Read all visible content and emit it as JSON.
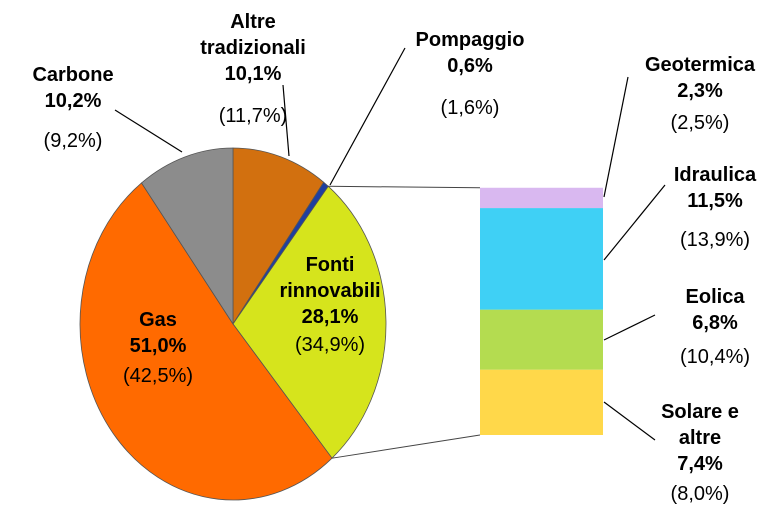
{
  "chart_data": [
    {
      "type": "pie",
      "categories": [
        "Altre tradizionali",
        "Pompaggio",
        "Fonti rinnovabili",
        "Gas",
        "Carbone"
      ],
      "values": [
        10.1,
        0.6,
        28.1,
        51.0,
        10.2
      ],
      "value_labels": [
        "10,1%",
        "0,6%",
        "28,1%",
        "51,0%",
        "10,2%"
      ],
      "colors": [
        "#d2700f",
        "#1f3fa0",
        "#d6e41c",
        "#ff6a00",
        "#8c8c8c"
      ],
      "previous": {
        "values": [
          11.7,
          1.6,
          34.9,
          42.5,
          9.2
        ],
        "value_labels": [
          "(11,7%)",
          "(1,6%)",
          "(34,9%)",
          "(42,5%)",
          "(9,2%)"
        ]
      }
    },
    {
      "type": "bar",
      "stacked": true,
      "categories": [
        "Solare e altre",
        "Eolica",
        "Idraulica",
        "Geotermica"
      ],
      "values": [
        7.4,
        6.8,
        11.5,
        2.3
      ],
      "value_labels": [
        "7,4%",
        "6,8%",
        "11,5%",
        "2,3%"
      ],
      "colors": [
        "#ffd84a",
        "#b4dc50",
        "#3fd0f5",
        "#d9b8f0"
      ],
      "previous": {
        "values": [
          8.0,
          10.4,
          13.9,
          2.5
        ],
        "value_labels": [
          "(8,0%)",
          "(10,4%)",
          "(13,9%)",
          "(2,5%)"
        ]
      }
    }
  ]
}
